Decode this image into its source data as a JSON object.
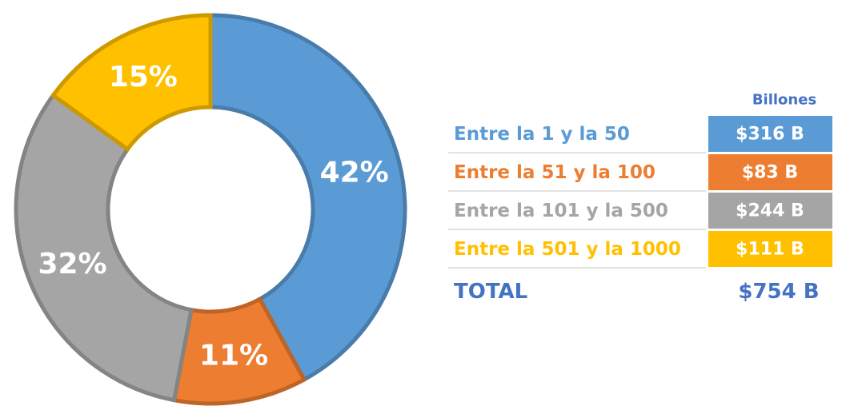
{
  "chart_data": {
    "type": "donut",
    "categories": [
      "Entre la 1 y la 50",
      "Entre la 51 y la 100",
      "Entre la 101 y la 500",
      "Entre la 501 y la 1000"
    ],
    "values": [
      42,
      11,
      32,
      15
    ],
    "value_labels": [
      "42%",
      "11%",
      "32%",
      "15%"
    ],
    "colors": [
      "#5b9bd5",
      "#ed7d31",
      "#a5a5a5",
      "#ffc000"
    ],
    "amounts_header": "Billones",
    "amounts": [
      "$316 B",
      "$83 B",
      "$244 B",
      "$111 B"
    ],
    "total_label": "TOTAL",
    "total": "$754 B"
  }
}
